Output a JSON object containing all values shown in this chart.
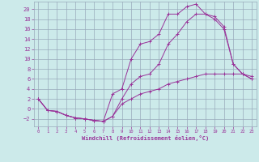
{
  "background_color": "#cceaea",
  "grid_color": "#99aabb",
  "line_color": "#993399",
  "xlim": [
    -0.5,
    23.5
  ],
  "ylim": [
    -3.5,
    21.5
  ],
  "xlabel": "Windchill (Refroidissement éolien,°C)",
  "xticks": [
    0,
    1,
    2,
    3,
    4,
    5,
    6,
    7,
    8,
    9,
    10,
    11,
    12,
    13,
    14,
    15,
    16,
    17,
    18,
    19,
    20,
    21,
    22,
    23
  ],
  "yticks": [
    -2,
    0,
    2,
    4,
    6,
    8,
    10,
    12,
    14,
    16,
    18,
    20
  ],
  "line1_x": [
    0,
    1,
    2,
    3,
    4,
    5,
    6,
    7,
    8,
    9,
    10,
    11,
    12,
    13,
    14,
    15,
    16,
    17,
    18,
    19,
    20,
    21,
    22,
    23
  ],
  "line1_y": [
    2,
    -0.3,
    -0.5,
    -1.3,
    -1.8,
    -2,
    -2.3,
    -2.5,
    -1.5,
    2,
    5,
    6.5,
    7,
    9,
    13,
    15,
    17.5,
    19,
    19,
    18.5,
    16.5,
    9,
    7,
    6
  ],
  "line2_x": [
    0,
    1,
    2,
    3,
    4,
    5,
    6,
    7,
    8,
    9,
    10,
    11,
    12,
    13,
    14,
    15,
    16,
    17,
    18,
    19,
    20,
    21,
    22,
    23
  ],
  "line2_y": [
    2,
    -0.3,
    -0.5,
    -1.3,
    -1.8,
    -2,
    -2.3,
    -2.5,
    3,
    4,
    10,
    13,
    13.5,
    15,
    19,
    19,
    20.5,
    21,
    19,
    18,
    16,
    9,
    7,
    6
  ],
  "line3_x": [
    0,
    1,
    2,
    3,
    4,
    5,
    6,
    7,
    8,
    9,
    10,
    11,
    12,
    13,
    14,
    15,
    16,
    17,
    18,
    19,
    20,
    21,
    22,
    23
  ],
  "line3_y": [
    2,
    -0.3,
    -0.5,
    -1.3,
    -1.8,
    -2,
    -2.3,
    -2.5,
    -1.5,
    1,
    2,
    3,
    3.5,
    4,
    5,
    5.5,
    6,
    6.5,
    7,
    7,
    7,
    7,
    7,
    6.5
  ]
}
